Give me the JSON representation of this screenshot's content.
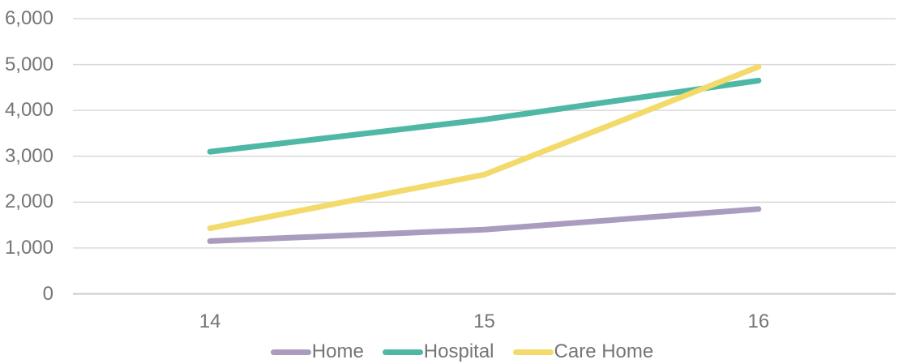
{
  "chart_data": {
    "type": "line",
    "title": "",
    "xlabel": "",
    "ylabel": "",
    "categories": [
      "14",
      "15",
      "16"
    ],
    "series": [
      {
        "name": "Home",
        "color": "#AA9CBF",
        "values": [
          1150,
          1400,
          1850
        ]
      },
      {
        "name": "Hospital",
        "color": "#4FB8A5",
        "values": [
          3100,
          3800,
          4650
        ]
      },
      {
        "name": "Care Home",
        "color": "#F2DB6B",
        "values": [
          1430,
          2600,
          4950
        ]
      }
    ],
    "ylim": [
      0,
      6000
    ],
    "y_tick_step": 1000,
    "y_tick_labels": [
      "0",
      "1,000",
      "2,000",
      "3,000",
      "4,000",
      "5,000",
      "6,000"
    ],
    "grid": "horizontal",
    "legend_position": "bottom-center",
    "colors": {
      "gridline": "#D9D9D9",
      "zero_line": "#C9C9C9",
      "tick_text": "#757575",
      "background": "#FFFFFF"
    }
  }
}
